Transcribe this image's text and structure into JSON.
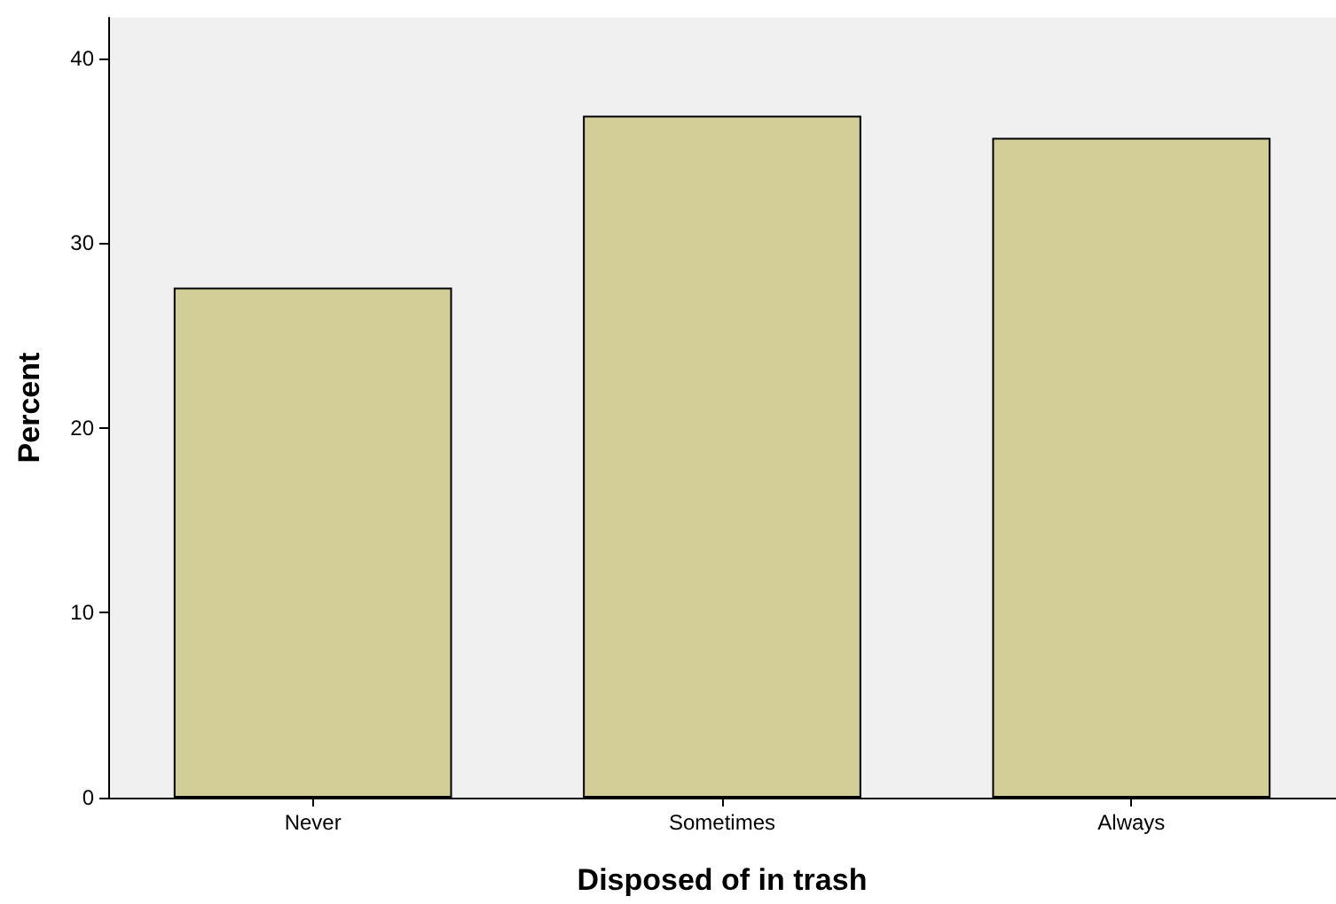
{
  "chart_data": {
    "type": "bar",
    "xlabel": "Disposed of in trash",
    "ylabel": "Percent",
    "categories": [
      "Never",
      "Sometimes",
      "Always"
    ],
    "values": [
      27.6,
      36.9,
      35.7
    ],
    "color": "#d3cd98",
    "ylim": [
      0,
      42.2
    ],
    "yticks": [
      0,
      10,
      20,
      30,
      40
    ]
  }
}
